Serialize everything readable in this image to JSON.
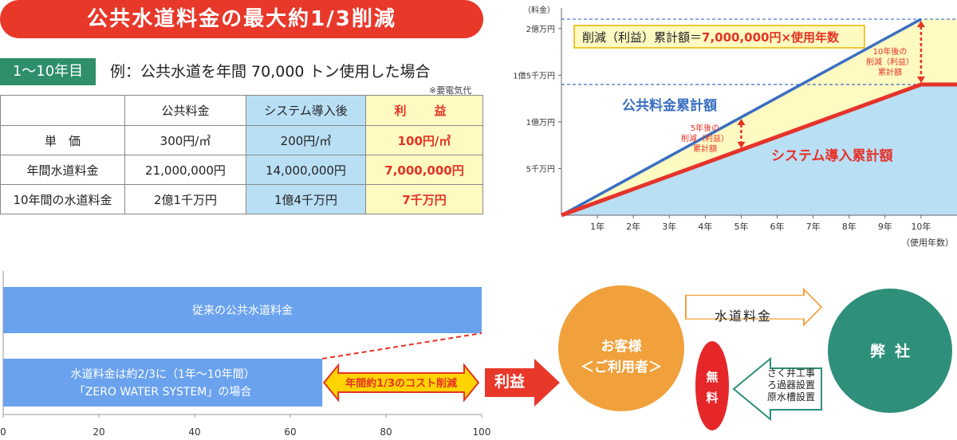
{
  "banner": {
    "title": "公共水道料金の最大約1/3削減"
  },
  "example": {
    "period_tag": "1〜10年目",
    "text": "例：公共水道を年間 70,000 トン使用した場合",
    "note": "※要電気代"
  },
  "table": {
    "headers": [
      "",
      "公共料金",
      "システム導入後",
      "利　益"
    ],
    "rows": [
      [
        "単　価",
        "300円/㎥",
        "200円/㎥",
        "100円/㎥"
      ],
      [
        "年間水道料金",
        "21,000,000円",
        "14,000,000円",
        "7,000,000円"
      ],
      [
        "10年間の水道料金",
        "2億1千万円",
        "1億4千万円",
        "7千万円"
      ]
    ]
  },
  "chart_data": [
    {
      "type": "line",
      "title": "",
      "ylabel": "（料金）",
      "xlabel": "（使用年数）",
      "x": [
        0,
        1,
        2,
        3,
        4,
        5,
        6,
        7,
        8,
        9,
        10
      ],
      "x_tick_labels": [
        "1年",
        "2年",
        "3年",
        "4年",
        "5年",
        "6年",
        "7年",
        "8年",
        "9年",
        "10年"
      ],
      "y_ticks": [
        50000000,
        100000000,
        150000000,
        200000000
      ],
      "y_tick_labels": [
        "5千万円",
        "1億万円",
        "1億5千万円",
        "2億万円"
      ],
      "xlim": [
        0,
        11
      ],
      "ylim": [
        0,
        222000000
      ],
      "series": [
        {
          "name": "公共料金累計額",
          "color": "#3a6fc1",
          "values": [
            0,
            21000000,
            42000000,
            63000000,
            84000000,
            105000000,
            126000000,
            147000000,
            168000000,
            189000000,
            210000000
          ]
        },
        {
          "name": "システム導入累計額",
          "color": "#e5332a",
          "values": [
            0,
            14000000,
            28000000,
            42000000,
            56000000,
            70000000,
            84000000,
            98000000,
            112000000,
            126000000,
            140000000
          ]
        }
      ],
      "reference_lines": [
        210000000,
        140000000
      ],
      "annotations": {
        "formula": "削減（利益）累計額＝7,000,000円×使用年数",
        "note_5yr": [
          "5年後の",
          "削減（利益）",
          "累計額"
        ],
        "note_10yr": [
          "10年後の",
          "削減（利益）",
          "累計額"
        ]
      }
    },
    {
      "type": "bar",
      "orientation": "horizontal",
      "categories": [
        "従来の公共水道料金",
        "水道料金は約2/3に（1年〜10年間）「ZERO WATER SYSTEM」の場合"
      ],
      "category_lines": [
        [
          "従来の公共水道料金"
        ],
        [
          "水道料金は約2/3に（1年〜10年間）",
          "「ZERO WATER SYSTEM」の場合"
        ]
      ],
      "values": [
        100,
        66.7
      ],
      "xlim": [
        0,
        100
      ],
      "x_ticks": [
        0,
        20,
        40,
        60,
        80,
        100
      ],
      "color": "#6aa2ee",
      "annotation": "年間約1/3のコスト削減"
    }
  ],
  "flow": {
    "profit_arrow_label": "利益",
    "customer_line1": "お客様",
    "customer_line2": "＜ご利用者＞",
    "company": "弊社",
    "water_fee": "水道料金",
    "free_line1": "無",
    "free_line2": "料",
    "services": [
      "さく井工事",
      "ろ過器設置",
      "原水槽設置"
    ]
  },
  "colors": {
    "red": "#e8382a",
    "green": "#2e8f6a",
    "blue_line": "#3a6fc1",
    "light_blue": "#b9dff5",
    "light_yellow": "#fff9c2",
    "orange": "#f0a13c",
    "teal": "#2e8f7a"
  }
}
